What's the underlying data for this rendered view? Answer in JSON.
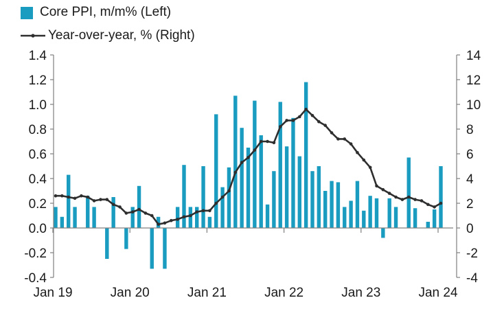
{
  "chart_data": {
    "type": "bar+line",
    "legend": [
      {
        "label": "Core PPI, m/m% (Left)",
        "kind": "bar"
      },
      {
        "label": "Year-over-year, % (Right)",
        "kind": "line"
      }
    ],
    "colors": {
      "bar": "#1a9bc0",
      "line": "#2e2e2e",
      "axis": "#7f7f7f"
    },
    "x_tick_labels": [
      "Jan 19",
      "Jan 20",
      "Jan 21",
      "Jan 22",
      "Jan 23",
      "Jan 24"
    ],
    "x_ticks_at_index": [
      0,
      12,
      24,
      36,
      48,
      60
    ],
    "months": [
      "2019-01",
      "2019-02",
      "2019-03",
      "2019-04",
      "2019-05",
      "2019-06",
      "2019-07",
      "2019-08",
      "2019-09",
      "2019-10",
      "2019-11",
      "2019-12",
      "2020-01",
      "2020-02",
      "2020-03",
      "2020-04",
      "2020-05",
      "2020-06",
      "2020-07",
      "2020-08",
      "2020-09",
      "2020-10",
      "2020-11",
      "2020-12",
      "2021-01",
      "2021-02",
      "2021-03",
      "2021-04",
      "2021-05",
      "2021-06",
      "2021-07",
      "2021-08",
      "2021-09",
      "2021-10",
      "2021-11",
      "2021-12",
      "2022-01",
      "2022-02",
      "2022-03",
      "2022-04",
      "2022-05",
      "2022-06",
      "2022-07",
      "2022-08",
      "2022-09",
      "2022-10",
      "2022-11",
      "2022-12",
      "2023-01",
      "2023-02",
      "2023-03",
      "2023-04",
      "2023-05",
      "2023-06",
      "2023-07",
      "2023-08",
      "2023-09",
      "2023-10",
      "2023-11",
      "2023-12",
      "2024-01"
    ],
    "left_axis": {
      "ylim": [
        -0.4,
        1.4
      ],
      "ticks": [
        -0.4,
        -0.2,
        0.0,
        0.2,
        0.4,
        0.6,
        0.8,
        1.0,
        1.2,
        1.4
      ],
      "tick_labels": [
        "-0.4",
        "-0.2",
        "0.0",
        "0.2",
        "0.4",
        "0.6",
        "0.8",
        "1.0",
        "1.2",
        "1.4"
      ]
    },
    "right_axis": {
      "ylim": [
        -4,
        14
      ],
      "ticks": [
        -4,
        -2,
        0,
        2,
        4,
        6,
        8,
        10,
        12,
        14
      ],
      "tick_labels": [
        "-4",
        "-2",
        "0",
        "2",
        "4",
        "6",
        "8",
        "10",
        "12",
        "14"
      ]
    },
    "series": [
      {
        "name": "Core PPI, m/m% (Left)",
        "type": "bar",
        "axis": "left",
        "values": [
          0.17,
          0.09,
          0.43,
          0.17,
          0.0,
          0.26,
          0.17,
          0.0,
          -0.25,
          0.25,
          0.0,
          -0.17,
          0.17,
          0.34,
          0.0,
          -0.33,
          0.09,
          -0.33,
          0.0,
          0.17,
          0.51,
          0.17,
          0.17,
          0.5,
          0.09,
          0.92,
          0.33,
          0.49,
          1.07,
          0.81,
          0.65,
          1.03,
          0.75,
          0.19,
          0.46,
          1.02,
          0.66,
          0.89,
          0.58,
          1.18,
          0.46,
          0.5,
          0.3,
          0.38,
          0.37,
          0.17,
          0.22,
          0.38,
          0.14,
          0.26,
          0.24,
          -0.08,
          0.24,
          0.17,
          0.0,
          0.57,
          0.16,
          0.0,
          0.05,
          0.15,
          0.5
        ]
      },
      {
        "name": "Year-over-year, % (Right)",
        "type": "line",
        "axis": "right",
        "values": [
          2.6,
          2.6,
          2.5,
          2.4,
          2.6,
          2.5,
          2.2,
          2.3,
          2.3,
          1.9,
          1.7,
          1.2,
          1.3,
          1.5,
          1.2,
          1.0,
          0.3,
          0.4,
          0.6,
          0.7,
          0.9,
          1.0,
          1.3,
          1.4,
          1.4,
          2.0,
          2.5,
          3.0,
          4.5,
          5.3,
          5.7,
          6.3,
          7.0,
          7.0,
          6.9,
          8.2,
          8.7,
          8.7,
          9.0,
          9.6,
          9.1,
          8.6,
          8.3,
          7.7,
          7.2,
          7.2,
          6.8,
          6.1,
          5.5,
          4.9,
          3.4,
          3.1,
          2.8,
          2.5,
          2.3,
          2.5,
          2.3,
          2.2,
          1.9,
          1.7,
          2.0
        ]
      }
    ]
  }
}
